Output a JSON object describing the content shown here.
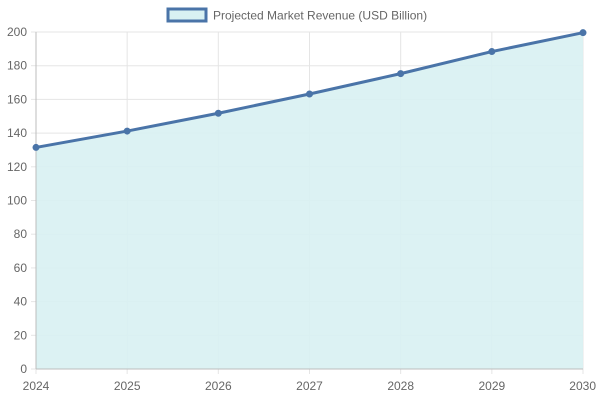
{
  "chart_data": {
    "type": "area",
    "legend": {
      "label": "Projected Market Revenue (USD Billion)",
      "position": "top"
    },
    "x": [
      "2024",
      "2025",
      "2026",
      "2027",
      "2028",
      "2029",
      "2030"
    ],
    "series": [
      {
        "name": "Projected Market Revenue (USD Billion)",
        "values": [
          131.5,
          141.2,
          151.8,
          163.2,
          175.3,
          188.4,
          199.6
        ]
      }
    ],
    "ylim": [
      0,
      200
    ],
    "yticks": [
      "0",
      "20",
      "40",
      "60",
      "80",
      "100",
      "120",
      "140",
      "160",
      "180",
      "200"
    ],
    "grid": true,
    "colors": {
      "line": "#4a74a8",
      "fill": "#d8f1f2",
      "grid": "#e5e5e5",
      "axis": "#bdbdbd",
      "text": "#666666"
    }
  }
}
